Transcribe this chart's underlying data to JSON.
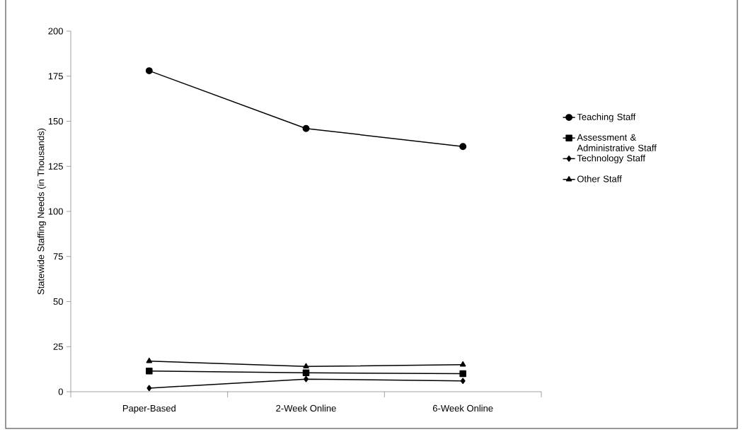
{
  "chart_data": {
    "type": "line",
    "ylabel": "Statewide Staffing Needs (in Thousands)",
    "categories": [
      "Paper-Based",
      "2-Week Online",
      "6-Week Online"
    ],
    "ylim": [
      0,
      200
    ],
    "yticks": [
      0,
      25,
      50,
      75,
      100,
      125,
      150,
      175,
      200
    ],
    "legend": "right",
    "line_style": "solid",
    "series": [
      {
        "name": "Teaching Staff",
        "color": "#000000",
        "marker": "circle",
        "values": [
          178,
          146,
          136
        ]
      },
      {
        "name": "Assessment & Administrative Staff",
        "color": "#000000",
        "marker": "square",
        "values": [
          11.5,
          10.5,
          10
        ]
      },
      {
        "name": "Technology Staff",
        "color": "#000000",
        "marker": "diamond",
        "values": [
          2,
          7,
          6
        ]
      },
      {
        "name": "Other Staff",
        "color": "#000000",
        "marker": "triangle",
        "values": [
          17,
          14,
          15
        ]
      }
    ]
  }
}
